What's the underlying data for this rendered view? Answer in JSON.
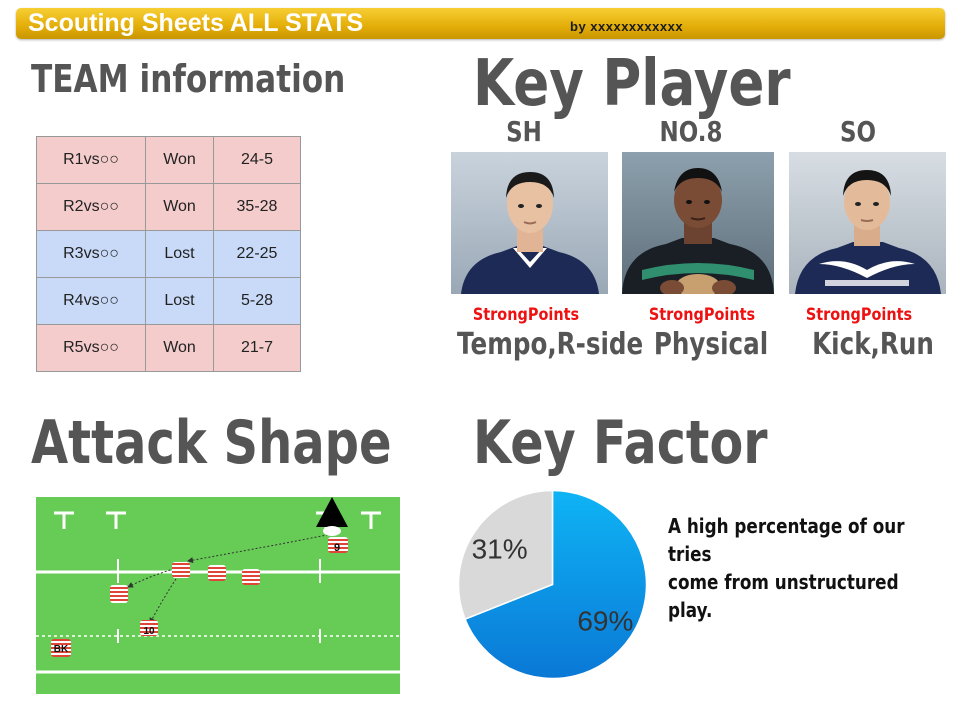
{
  "header": {
    "title": "Scouting Sheets ALL STATS",
    "author": "by xxxxxxxxxxxx"
  },
  "team_info": {
    "heading": "TEAM information",
    "rows": [
      {
        "match": "R1vs○○",
        "result": "Won",
        "score": "24-5"
      },
      {
        "match": "R2vs○○",
        "result": "Won",
        "score": "35-28"
      },
      {
        "match": "R3vs○○",
        "result": "Lost",
        "score": "22-25"
      },
      {
        "match": "R4vs○○",
        "result": "Lost",
        "score": "5-28"
      },
      {
        "match": "R5vs○○",
        "result": "Won",
        "score": "21-7"
      }
    ],
    "colors": {
      "won": "#f4cccc",
      "lost": "#c9daf8"
    }
  },
  "key_player": {
    "heading": "Key Player",
    "players": [
      {
        "position": "SH",
        "strength_label": "StrongPoints",
        "strength": "Tempo,R-side"
      },
      {
        "position": "NO.8",
        "strength_label": "StrongPoints",
        "strength": "Physical"
      },
      {
        "position": "SO",
        "strength_label": "StrongPoints",
        "strength": "Kick,Run"
      }
    ]
  },
  "attack_shape": {
    "heading": "Attack Shape",
    "player_numbers": [
      "9",
      "10",
      "BK"
    ],
    "colors": {
      "pitch": "#66cc55",
      "lines": "#ffffff"
    }
  },
  "key_factor": {
    "heading": "Key Factor",
    "note": "A high percentage of our tries come from unstructured play.",
    "note_lines": [
      "A high percentage of our tries",
      "come from unstructured play."
    ]
  },
  "chart_data": {
    "type": "pie",
    "title": "",
    "slices": [
      {
        "label": "69%",
        "value": 69,
        "color": "#0aa0e8"
      },
      {
        "label": "31%",
        "value": 31,
        "color": "#d9d9d9"
      }
    ]
  }
}
